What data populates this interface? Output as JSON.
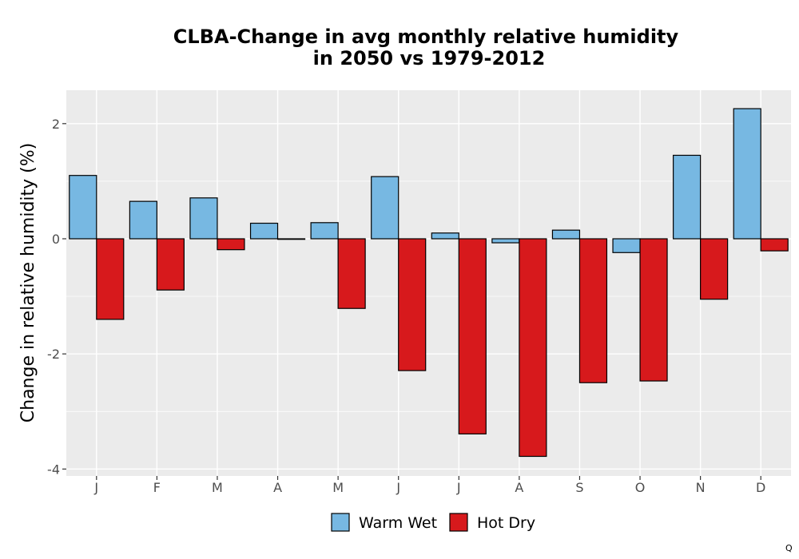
{
  "chart_data": {
    "type": "bar",
    "title_line1": "CLBA-Change in avg monthly relative humidity",
    "title_line2": "in 2050 vs 1979-2012",
    "xlabel": "",
    "ylabel": "Change in relative humidity (%)",
    "categories": [
      "J",
      "F",
      "M",
      "A",
      "M",
      "J",
      "J",
      "A",
      "S",
      "O",
      "N",
      "D"
    ],
    "ylim": [
      -4.12,
      2.58
    ],
    "yticks": [
      -4,
      -2,
      0,
      2
    ],
    "ytick_labels": [
      "-4",
      "-2",
      "0",
      "2"
    ],
    "grid": true,
    "legend_position": "bottom",
    "series": [
      {
        "name": "Warm Wet",
        "color": "#77b8e2",
        "values": [
          1.1,
          0.65,
          0.71,
          0.27,
          0.28,
          1.08,
          0.1,
          -0.07,
          0.15,
          -0.24,
          1.45,
          2.26
        ]
      },
      {
        "name": "Hot Dry",
        "color": "#d7191c",
        "values": [
          -1.4,
          -0.89,
          -0.19,
          -0.01,
          -1.21,
          -2.29,
          -3.39,
          -3.78,
          -2.5,
          -2.47,
          -1.05,
          -0.21
        ]
      }
    ]
  },
  "corner_mark": "Q"
}
